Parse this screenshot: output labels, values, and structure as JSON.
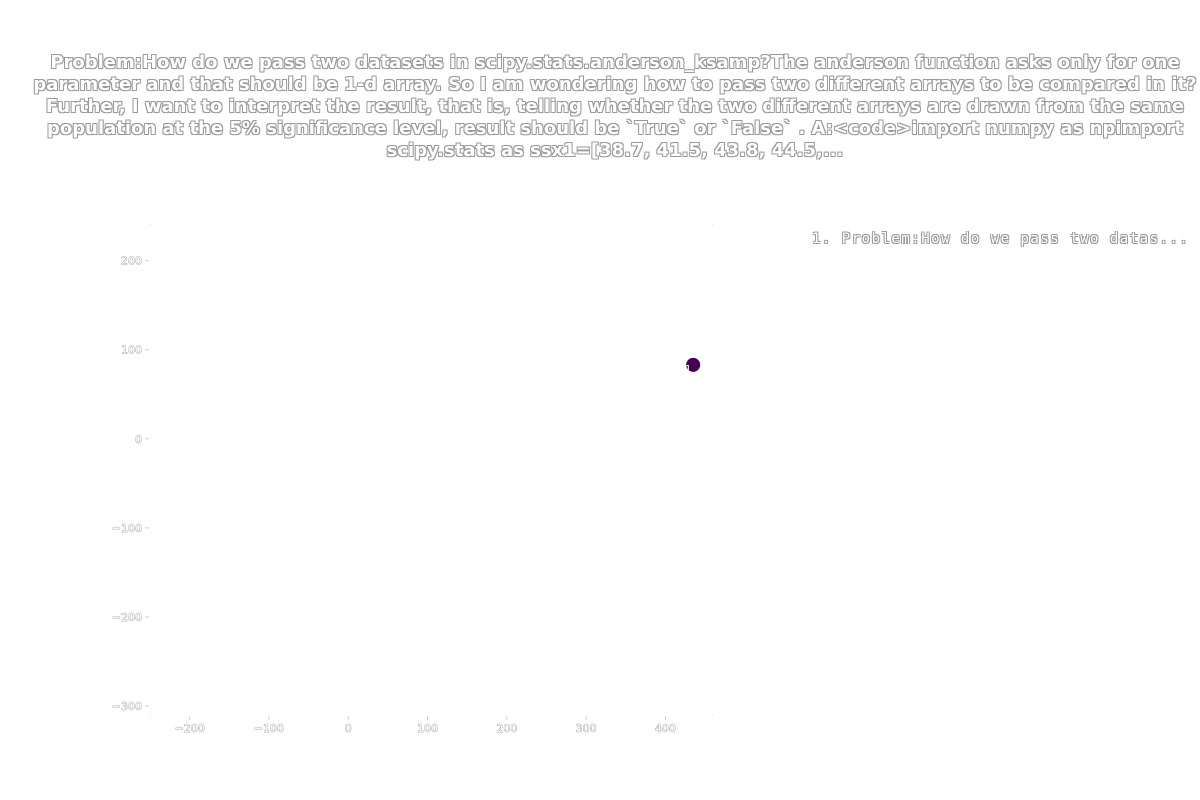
{
  "chart_data": {
    "type": "scatter",
    "title": "Problem:How do we pass two datasets in scipy.stats.anderson_ksamp?The anderson function asks only for one parameter and that should be 1-d array. So I am wondering how to pass two different arrays to be compared in it? Further, I want to interpret the result, that is, telling whether the two different arrays are drawn from the same population at the 5% significance level, result should be `True` or `False` . A:<code>import numpy as npimport scipy.stats as ssx1=[38.7,  41.5,  43.8,  44.5,...",
    "legend": [
      "1. Problem:How do we pass two datas..."
    ],
    "legend_position": "top-right",
    "xlim": [
      -250,
      460
    ],
    "ylim": [
      -310,
      240
    ],
    "x_ticks": [
      -200,
      -100,
      0,
      100,
      200,
      300,
      400
    ],
    "y_ticks": [
      -300,
      -200,
      -100,
      0,
      100,
      200
    ],
    "x_tick_labels": [
      "−200",
      "−100",
      "0",
      "100",
      "200",
      "300",
      "400"
    ],
    "y_tick_labels": [
      "−300",
      "−200",
      "−100",
      "0",
      "100",
      "200"
    ],
    "grid": false,
    "points": [
      {
        "label": "1",
        "x": 435,
        "y": 83,
        "color": "#440154"
      }
    ]
  }
}
